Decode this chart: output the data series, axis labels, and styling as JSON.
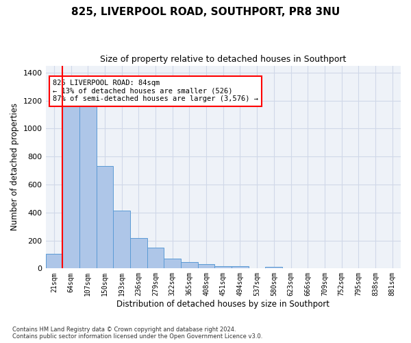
{
  "title": "825, LIVERPOOL ROAD, SOUTHPORT, PR8 3NU",
  "subtitle": "Size of property relative to detached houses in Southport",
  "xlabel": "Distribution of detached houses by size in Southport",
  "ylabel": "Number of detached properties",
  "categories": [
    "21sqm",
    "64sqm",
    "107sqm",
    "150sqm",
    "193sqm",
    "236sqm",
    "279sqm",
    "322sqm",
    "365sqm",
    "408sqm",
    "451sqm",
    "494sqm",
    "537sqm",
    "580sqm",
    "623sqm",
    "666sqm",
    "709sqm",
    "752sqm",
    "795sqm",
    "838sqm",
    "881sqm"
  ],
  "bar_values": [
    107,
    1160,
    1160,
    730,
    415,
    215,
    150,
    70,
    48,
    30,
    18,
    15,
    0,
    12,
    0,
    0,
    0,
    0,
    0,
    0,
    0
  ],
  "bar_color": "#aec6e8",
  "bar_edge_color": "#5b9bd5",
  "grid_color": "#d0d8e8",
  "background_color": "#eef2f8",
  "annotation_text": "825 LIVERPOOL ROAD: 84sqm\n← 13% of detached houses are smaller (526)\n87% of semi-detached houses are larger (3,576) →",
  "red_line_x": 0.5,
  "ylim": [
    0,
    1450
  ],
  "yticks": [
    0,
    200,
    400,
    600,
    800,
    1000,
    1200,
    1400
  ],
  "title_fontsize": 11,
  "subtitle_fontsize": 9,
  "footer": "Contains HM Land Registry data © Crown copyright and database right 2024.\nContains public sector information licensed under the Open Government Licence v3.0."
}
